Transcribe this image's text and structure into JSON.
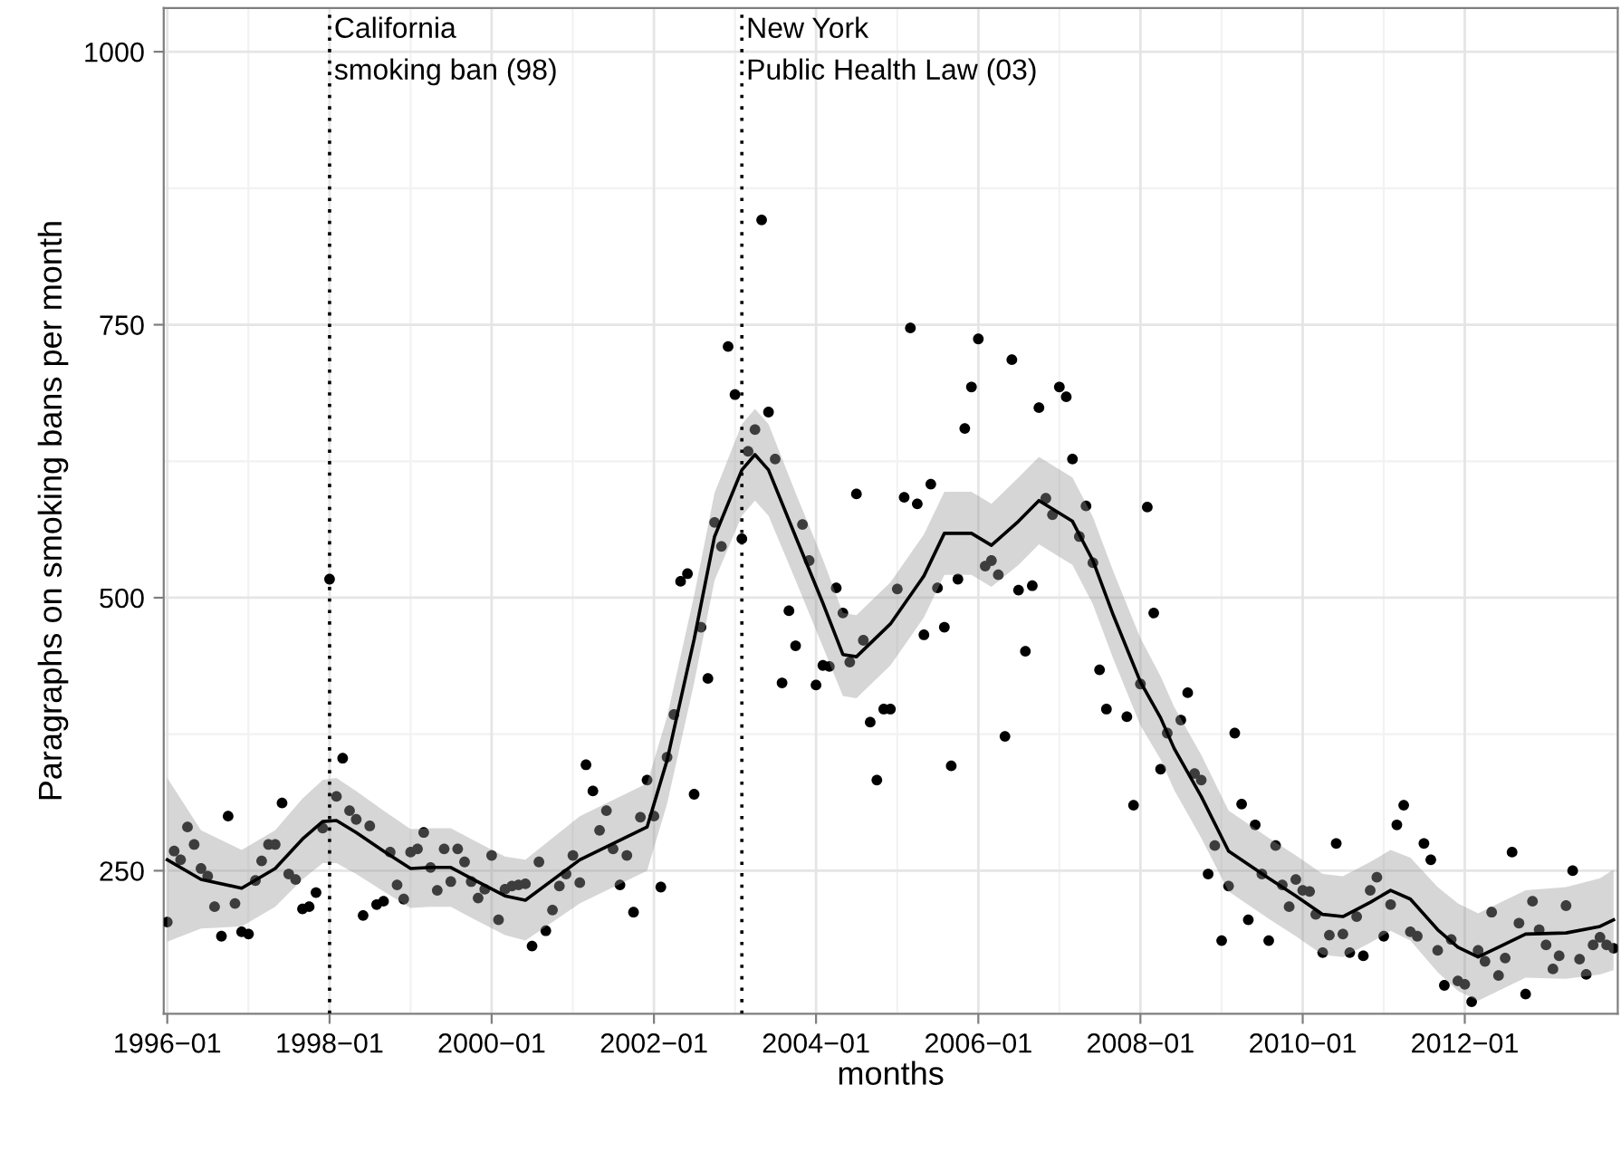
{
  "chart_data": {
    "type": "scatter",
    "xlabel": "months",
    "ylabel": "Paragraphs on smoking bans per month",
    "xlim": [
      "1995-12-16",
      "2013-11-20"
    ],
    "ylim": [
      119,
      1040
    ],
    "yticks": [
      250,
      500,
      750,
      1000
    ],
    "xticks": [
      {
        "value": "1996-01",
        "label": "1996−01"
      },
      {
        "value": "1998-01",
        "label": "1998−01"
      },
      {
        "value": "2000-01",
        "label": "2000−01"
      },
      {
        "value": "2002-01",
        "label": "2002−01"
      },
      {
        "value": "2004-01",
        "label": "2004−01"
      },
      {
        "value": "2006-01",
        "label": "2006−01"
      },
      {
        "value": "2008-01",
        "label": "2008−01"
      },
      {
        "value": "2010-01",
        "label": "2010−01"
      },
      {
        "value": "2012-01",
        "label": "2012−01"
      }
    ],
    "grid": true,
    "legend": false,
    "marker": "circle",
    "x": [
      "1996-01",
      "1996-02",
      "1996-03",
      "1996-04",
      "1996-05",
      "1996-06",
      "1996-07",
      "1996-08",
      "1996-09",
      "1996-10",
      "1996-11",
      "1996-12",
      "1997-01",
      "1997-02",
      "1997-03",
      "1997-04",
      "1997-05",
      "1997-06",
      "1997-07",
      "1997-08",
      "1997-09",
      "1997-10",
      "1997-11",
      "1997-12",
      "1998-01",
      "1998-02",
      "1998-03",
      "1998-04",
      "1998-05",
      "1998-06",
      "1998-07",
      "1998-08",
      "1998-09",
      "1998-10",
      "1998-11",
      "1998-12",
      "1999-01",
      "1999-02",
      "1999-03",
      "1999-04",
      "1999-05",
      "1999-06",
      "1999-07",
      "1999-08",
      "1999-09",
      "1999-10",
      "1999-11",
      "1999-12",
      "2000-01",
      "2000-02",
      "2000-03",
      "2000-04",
      "2000-05",
      "2000-06",
      "2000-07",
      "2000-08",
      "2000-09",
      "2000-10",
      "2000-11",
      "2000-12",
      "2001-01",
      "2001-02",
      "2001-03",
      "2001-04",
      "2001-05",
      "2001-06",
      "2001-07",
      "2001-08",
      "2001-09",
      "2001-10",
      "2001-11",
      "2001-12",
      "2002-01",
      "2002-02",
      "2002-03",
      "2002-04",
      "2002-05",
      "2002-06",
      "2002-07",
      "2002-08",
      "2002-09",
      "2002-10",
      "2002-11",
      "2002-12",
      "2003-01",
      "2003-02",
      "2003-03",
      "2003-04",
      "2003-05",
      "2003-06",
      "2003-07",
      "2003-08",
      "2003-09",
      "2003-10",
      "2003-11",
      "2003-12",
      "2004-01",
      "2004-02",
      "2004-03",
      "2004-04",
      "2004-05",
      "2004-06",
      "2004-07",
      "2004-08",
      "2004-09",
      "2004-10",
      "2004-11",
      "2004-12",
      "2005-01",
      "2005-02",
      "2005-03",
      "2005-04",
      "2005-05",
      "2005-06",
      "2005-07",
      "2005-08",
      "2005-09",
      "2005-10",
      "2005-11",
      "2005-12",
      "2006-01",
      "2006-02",
      "2006-03",
      "2006-04",
      "2006-05",
      "2006-06",
      "2006-07",
      "2006-08",
      "2006-09",
      "2006-10",
      "2006-11",
      "2006-12",
      "2007-01",
      "2007-02",
      "2007-03",
      "2007-04",
      "2007-05",
      "2007-06",
      "2007-07",
      "2007-08",
      "2007-09",
      "2007-10",
      "2007-11",
      "2007-12",
      "2008-01",
      "2008-02",
      "2008-03",
      "2008-04",
      "2008-05",
      "2008-06",
      "2008-07",
      "2008-08",
      "2008-09",
      "2008-10",
      "2008-11",
      "2008-12",
      "2009-01",
      "2009-02",
      "2009-03",
      "2009-04",
      "2009-05",
      "2009-06",
      "2009-07",
      "2009-08",
      "2009-09",
      "2009-10",
      "2009-11",
      "2009-12",
      "2010-01",
      "2010-02",
      "2010-03",
      "2010-04",
      "2010-05",
      "2010-06",
      "2010-07",
      "2010-08",
      "2010-09",
      "2010-10",
      "2010-11",
      "2010-12",
      "2011-01",
      "2011-02",
      "2011-03",
      "2011-04",
      "2011-05",
      "2011-06",
      "2011-07",
      "2011-08",
      "2011-09",
      "2011-10",
      "2011-11",
      "2011-12",
      "2012-01",
      "2012-02",
      "2012-03",
      "2012-04",
      "2012-05",
      "2012-06",
      "2012-07",
      "2012-08",
      "2012-09",
      "2012-10",
      "2012-11",
      "2012-12",
      "2013-01",
      "2013-02",
      "2013-03",
      "2013-04",
      "2013-05",
      "2013-06",
      "2013-07",
      "2013-08",
      "2013-09",
      "2013-10",
      "2013-11"
    ],
    "series": [
      {
        "color": "#000000",
        "values": [
          203,
          268,
          260,
          290,
          274,
          252,
          245,
          217,
          190,
          300,
          220,
          194,
          192,
          241,
          259,
          274,
          274,
          312,
          247,
          242,
          215,
          217,
          230,
          289,
          517,
          318,
          353,
          305,
          297,
          209,
          291,
          219,
          222,
          267,
          237,
          224,
          267,
          270,
          285,
          253,
          232,
          270,
          240,
          270,
          258,
          240,
          225,
          233,
          264,
          205,
          233,
          236,
          237,
          238,
          181,
          258,
          195,
          214,
          236,
          247,
          264,
          239,
          347,
          323,
          287,
          305,
          270,
          237,
          264,
          212,
          299,
          333,
          300,
          235,
          354,
          393,
          515,
          522,
          320,
          473,
          426,
          569,
          547,
          730,
          686,
          554,
          634,
          654,
          846,
          670,
          627,
          422,
          488,
          456,
          567,
          534,
          420,
          438,
          437,
          509,
          486,
          441,
          595,
          461,
          386,
          333,
          398,
          398,
          508,
          592,
          747,
          586,
          466,
          604,
          509,
          473,
          346,
          517,
          655,
          693,
          737,
          529,
          534,
          521,
          373,
          718,
          507,
          451,
          511,
          674,
          591,
          576,
          693,
          684,
          627,
          556,
          584,
          532,
          434,
          398,
          null,
          null,
          391,
          310,
          421,
          583,
          486,
          343,
          376,
          null,
          388,
          413,
          339,
          333,
          247,
          273,
          186,
          236,
          376,
          311,
          205,
          292,
          247,
          186,
          273,
          237,
          217,
          242,
          232,
          231,
          210,
          175,
          191,
          275,
          192,
          175,
          208,
          172,
          232,
          244,
          190,
          219,
          292,
          310,
          194,
          190,
          275,
          260,
          177,
          145,
          187,
          149,
          146,
          130,
          177,
          167,
          212,
          154,
          170,
          267,
          202,
          137,
          222,
          196,
          182,
          160,
          172,
          218,
          250,
          169,
          155,
          182,
          189,
          182,
          179
        ]
      },
      {
        "type": "line",
        "color": "#000000",
        "marker": "none",
        "x": [
          "1996-01",
          "1996-06",
          "1996-12",
          "1997-05",
          "1997-09",
          "1997-12",
          "1998-02",
          "1998-05",
          "1998-09",
          "1999-01",
          "1999-04",
          "1999-07",
          "1999-10",
          "2000-03",
          "2000-06",
          "2001-02",
          "2001-12",
          "2002-03",
          "2002-07",
          "2002-10",
          "2003-02",
          "2003-04",
          "2003-06",
          "2003-10",
          "2004-02",
          "2004-05",
          "2004-07",
          "2004-12",
          "2005-05",
          "2005-08",
          "2005-12",
          "2006-03",
          "2006-07",
          "2006-10",
          "2007-03",
          "2007-06",
          "2007-09",
          "2008-01",
          "2008-04",
          "2008-06",
          "2008-10",
          "2009-02",
          "2009-08",
          "2009-12",
          "2010-04",
          "2010-07",
          "2010-11",
          "2011-02",
          "2011-05",
          "2011-09",
          "2011-12",
          "2012-03",
          "2012-06",
          "2012-10",
          "2013-04",
          "2013-09",
          "2013-11"
        ],
        "values": [
          260,
          242,
          234,
          252,
          279,
          295,
          296,
          285,
          268,
          252,
          253,
          253,
          243,
          227,
          223,
          260,
          290,
          351,
          462,
          556,
          617,
          631,
          617,
          556,
          495,
          448,
          446,
          476,
          520,
          559,
          559,
          548,
          570,
          589,
          570,
          534,
          484,
          423,
          390,
          362,
          318,
          268,
          243,
          227,
          210,
          208,
          221,
          232,
          224,
          196,
          180,
          171,
          180,
          192,
          193,
          199,
          205
        ],
        "lower": [
          185,
          197,
          199,
          217,
          242,
          257,
          257,
          247,
          231,
          216,
          217,
          217,
          207,
          191,
          186,
          220,
          250,
          311,
          422,
          516,
          575,
          589,
          575,
          516,
          455,
          410,
          408,
          438,
          482,
          521,
          521,
          510,
          530,
          549,
          530,
          494,
          444,
          383,
          352,
          324,
          280,
          231,
          206,
          190,
          173,
          171,
          184,
          195,
          186,
          157,
          140,
          131,
          140,
          152,
          151,
          155,
          159
        ],
        "upper": [
          335,
          287,
          269,
          287,
          316,
          333,
          335,
          323,
          305,
          288,
          289,
          289,
          279,
          263,
          260,
          300,
          330,
          391,
          502,
          596,
          659,
          673,
          659,
          596,
          535,
          486,
          484,
          514,
          558,
          597,
          597,
          586,
          610,
          629,
          610,
          574,
          524,
          463,
          428,
          400,
          356,
          305,
          280,
          264,
          247,
          245,
          258,
          269,
          262,
          235,
          220,
          211,
          220,
          232,
          235,
          243,
          251
        ]
      }
    ],
    "ref_lines": [
      {
        "axis": "x",
        "value": "1998-01",
        "label": "California\nsmoking ban (98)",
        "line_style": "dotted"
      },
      {
        "axis": "x",
        "value": "2003-02",
        "label": "New York\nPublic Health Law (03)",
        "line_style": "dotted"
      }
    ]
  }
}
